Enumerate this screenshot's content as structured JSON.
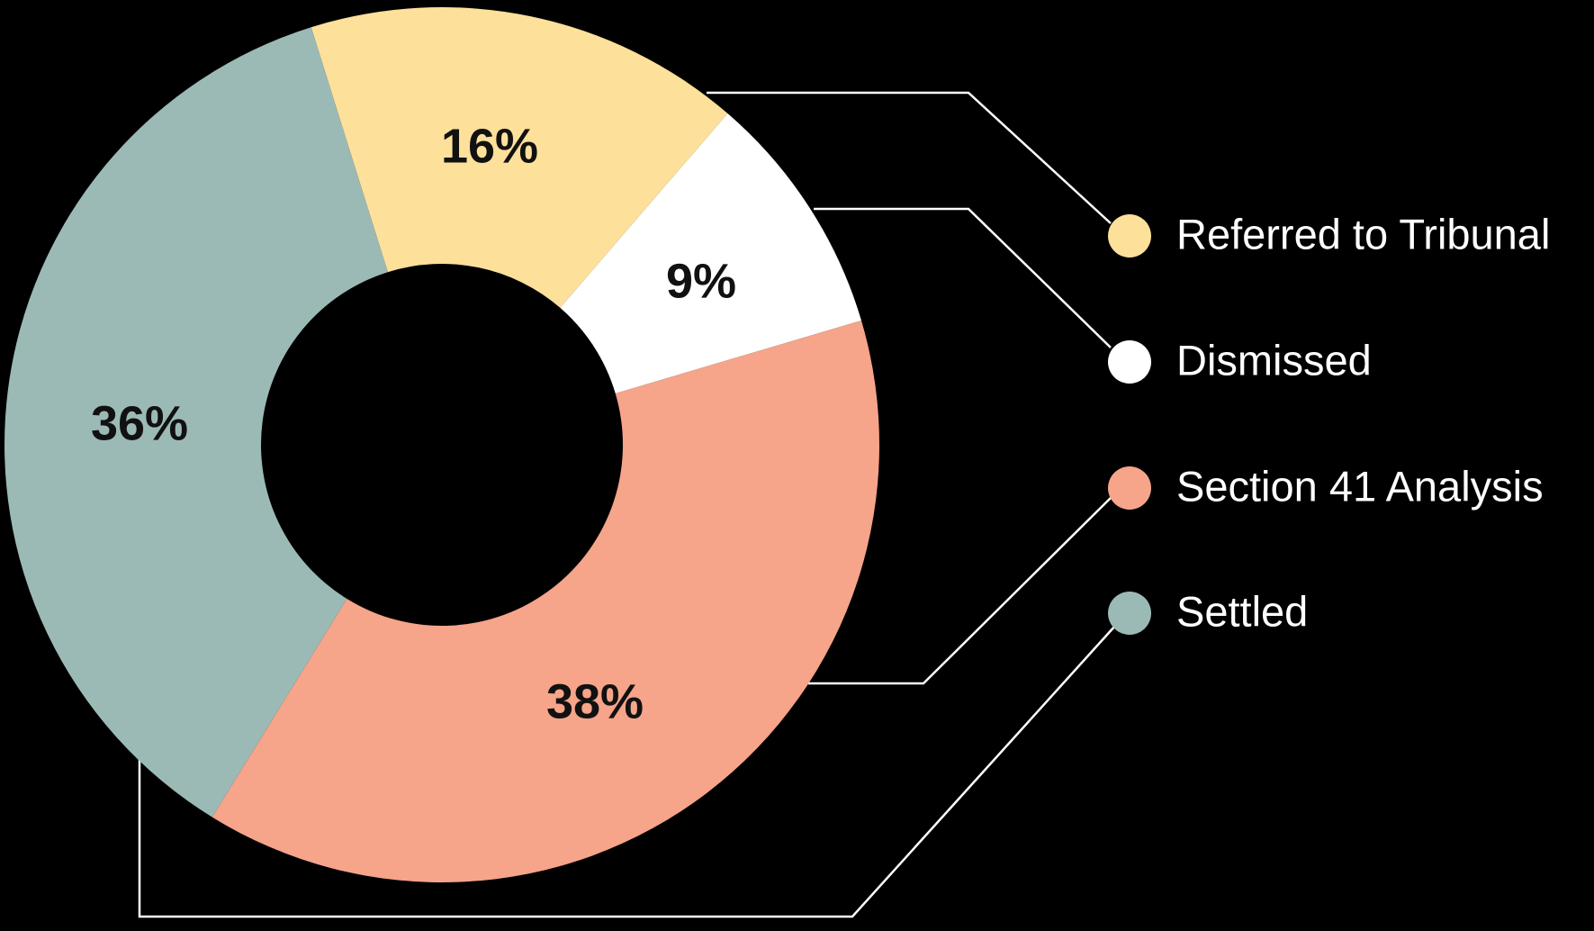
{
  "chart_data": {
    "type": "pie",
    "categories": [
      "Referred to Tribunal",
      "Dismissed",
      "Section 41 Analysis",
      "Settled"
    ],
    "values": [
      16,
      9,
      38,
      36
    ],
    "value_labels": [
      "16%",
      "9%",
      "38%",
      "36%"
    ],
    "colors": [
      "#fde09a",
      "#ffffff",
      "#f6a48a",
      "#9cbab5"
    ]
  }
}
